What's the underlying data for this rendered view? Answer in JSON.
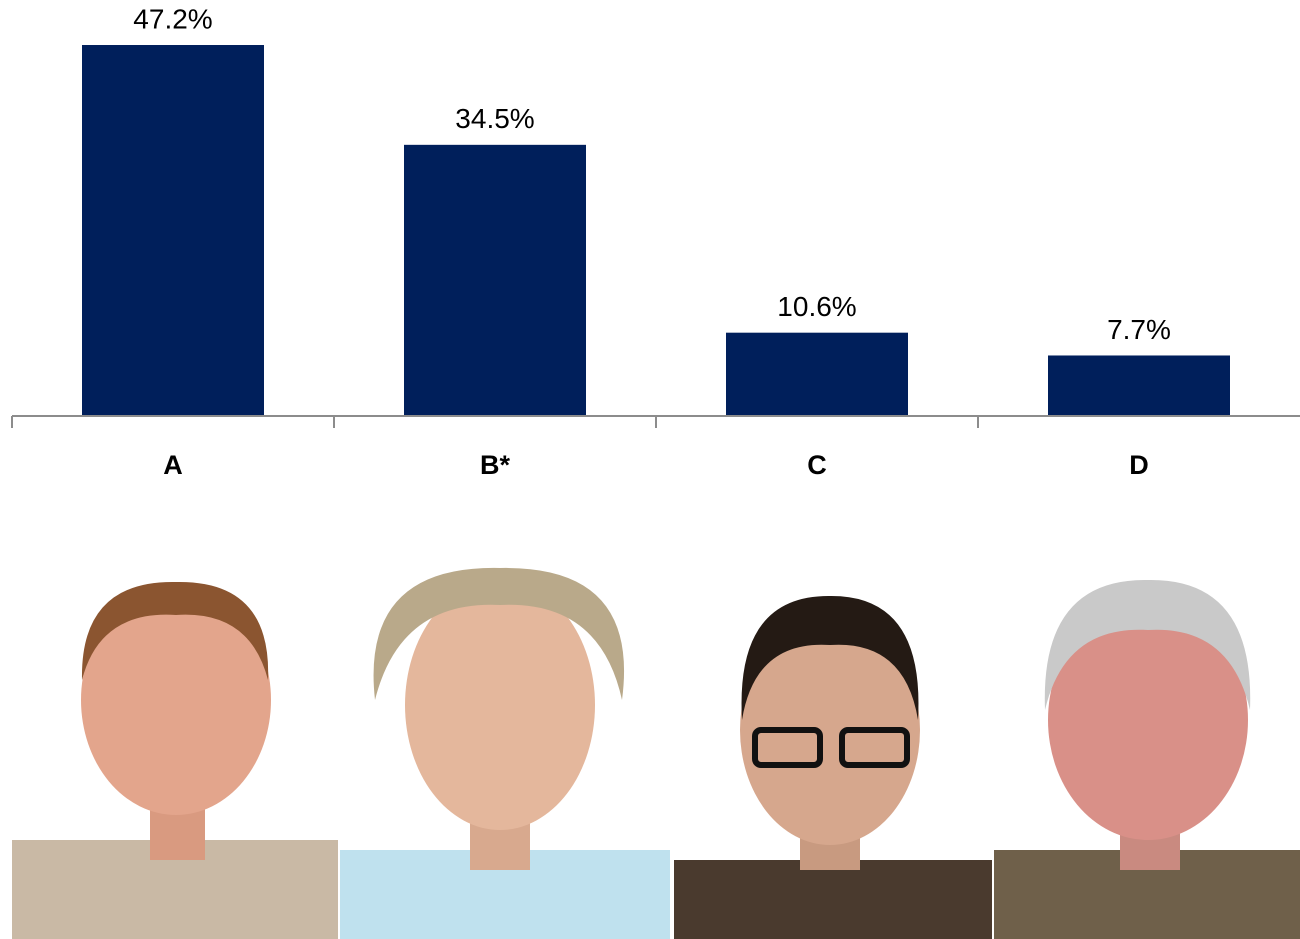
{
  "chart_data": {
    "type": "bar",
    "categories": [
      "A",
      "B*",
      "C",
      "D"
    ],
    "values": [
      47.2,
      34.5,
      10.6,
      7.7
    ],
    "value_labels": [
      "47.2%",
      "34.5%",
      "10.6%",
      "7.7%"
    ],
    "color": "#001f5b"
  }
}
